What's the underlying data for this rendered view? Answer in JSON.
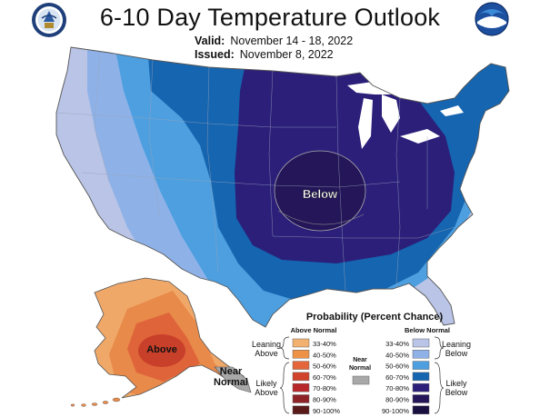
{
  "header": {
    "title": "6-10 Day Temperature Outlook",
    "valid_label": "Valid:",
    "valid_dates": "November 14 - 18, 2022",
    "issued_label": "Issued:",
    "issued_date": "November 8, 2022"
  },
  "logos": {
    "left": "doc-seal-icon",
    "right": "noaa-logo-icon"
  },
  "map": {
    "labels": {
      "below": "Below",
      "above": "Above",
      "near_1": "Near",
      "near_2": "Normal"
    },
    "colors": {
      "below_33_40": "#b9c4e6",
      "below_40_50": "#8eb2e8",
      "below_50_60": "#4d9fe0",
      "below_60_70": "#1565b0",
      "below_70_80": "#2b1f7a",
      "below_80_90": "#241659",
      "above_33_40": "#f0a868",
      "above_40_50": "#e88a4a",
      "above_50_60": "#e0643a",
      "above_60_70": "#c9402a",
      "near_normal": "#a8a8a8"
    }
  },
  "legend": {
    "title": "Probability (Percent Chance)",
    "above_header": "Above Normal",
    "below_header": "Below Normal",
    "near_label_1": "Near",
    "near_label_2": "Normal",
    "leaning_above_1": "Leaning",
    "leaning_above_2": "Above",
    "likely_above_1": "Likely",
    "likely_above_2": "Above",
    "leaning_below_1": "Leaning",
    "leaning_below_2": "Below",
    "likely_below_1": "Likely",
    "likely_below_2": "Below",
    "above_bins": [
      {
        "label": "33-40%",
        "color": "#f3b16f"
      },
      {
        "label": "40-50%",
        "color": "#ee9248"
      },
      {
        "label": "50-60%",
        "color": "#e4663a"
      },
      {
        "label": "60-70%",
        "color": "#d1432a"
      },
      {
        "label": "70-80%",
        "color": "#b8282a"
      },
      {
        "label": "80-90%",
        "color": "#8e2327"
      },
      {
        "label": "90-100%",
        "color": "#5a1a1a"
      }
    ],
    "below_bins": [
      {
        "label": "33-40%",
        "color": "#b9c4e6"
      },
      {
        "label": "40-50%",
        "color": "#8eb2e8"
      },
      {
        "label": "50-60%",
        "color": "#4d9fe0"
      },
      {
        "label": "60-70%",
        "color": "#1565b0"
      },
      {
        "label": "70-80%",
        "color": "#2b1f7a"
      },
      {
        "label": "80-90%",
        "color": "#241659"
      },
      {
        "label": "90-100%",
        "color": "#1a1040"
      }
    ]
  }
}
